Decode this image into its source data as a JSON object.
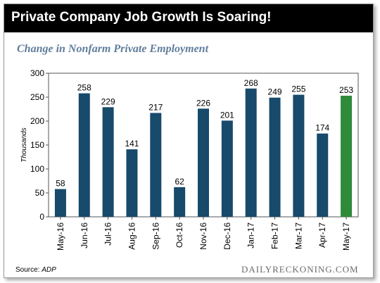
{
  "header": {
    "title": "Private Company Job Growth Is Soaring!"
  },
  "colors": {
    "bar": "#174a6b",
    "highlight_bar": "#2f8a3a",
    "subtitle": "#5f7d9c"
  },
  "footer": {
    "source_label": "Source: ",
    "source_value": "ADP",
    "brand": "DAILYRECKONING.COM"
  },
  "chart_data": {
    "type": "bar",
    "title": "Change in Nonfarm Private Employment",
    "xlabel": "",
    "ylabel": "Thousands",
    "ylim": [
      0,
      300
    ],
    "yticks": [
      0,
      50,
      100,
      150,
      200,
      250,
      300
    ],
    "grid": false,
    "categories": [
      "May-16",
      "Jun-16",
      "Jul-16",
      "Aug-16",
      "Sep-16",
      "Oct-16",
      "Nov-16",
      "Dec-16",
      "Jan-17",
      "Feb-17",
      "Mar-17",
      "Apr-17",
      "May-17"
    ],
    "values": [
      58,
      258,
      229,
      141,
      217,
      62,
      226,
      201,
      268,
      249,
      255,
      174,
      253
    ],
    "highlight": [
      "May-17"
    ]
  }
}
